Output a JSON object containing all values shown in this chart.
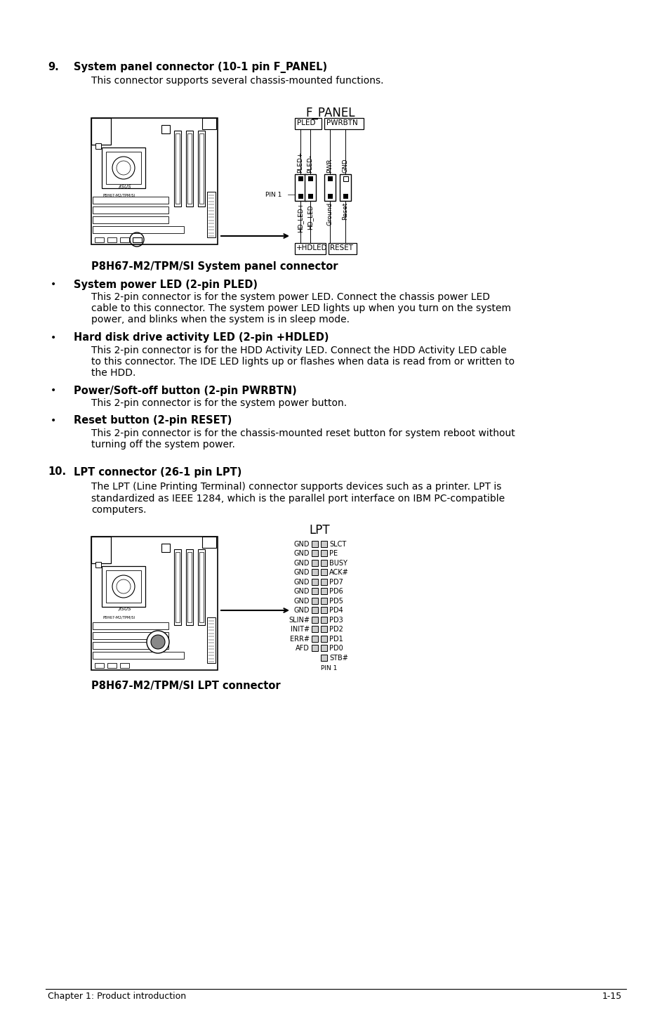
{
  "bg_color": "#ffffff",
  "section9_num": "9.",
  "section9_title": "System panel connector (10-1 pin F_PANEL)",
  "section9_desc": "This connector supports several chassis-mounted functions.",
  "fpanel_title": "F_PANEL",
  "fpanel_top_labels": [
    "PLED",
    "PWRBTN"
  ],
  "fpanel_top_pins": [
    "PLED+",
    "PLED-",
    "PWR",
    "GND"
  ],
  "fpanel_bot_pins": [
    "HD_LED+",
    "HD_LED-",
    "Ground",
    "Reset"
  ],
  "fpanel_bot_labels": [
    "+HDLED",
    "RESET"
  ],
  "fpanel_pin1": "PIN 1",
  "fpanel_caption": "P8H67-M2/TPM/SI System panel connector",
  "bullets": [
    {
      "title": "System power LED (2-pin PLED)",
      "body": "This 2-pin connector is for the system power LED. Connect the chassis power LED\ncable to this connector. The system power LED lights up when you turn on the system\npower, and blinks when the system is in sleep mode."
    },
    {
      "title": "Hard disk drive activity LED (2-pin +HDLED)",
      "body": "This 2-pin connector is for the HDD Activity LED. Connect the HDD Activity LED cable\nto this connector. The IDE LED lights up or flashes when data is read from or written to\nthe HDD."
    },
    {
      "title": "Power/Soft-off button (2-pin PWRBTN)",
      "body": "This 2-pin connector is for the system power button."
    },
    {
      "title": "Reset button (2-pin RESET)",
      "body": "This 2-pin connector is for the chassis-mounted reset button for system reboot without\nturning off the system power."
    }
  ],
  "section10_num": "10.",
  "section10_title": "LPT connector (26-1 pin LPT)",
  "section10_desc": "The LPT (Line Printing Terminal) connector supports devices such as a printer. LPT is\nstandardized as IEEE 1284, which is the parallel port interface on IBM PC-compatible\ncomputers.",
  "lpt_title": "LPT",
  "lpt_left_labels": [
    "GND",
    "GND",
    "GND",
    "GND",
    "GND",
    "GND",
    "GND",
    "GND",
    "SLIN#",
    "INIT#",
    "ERR#",
    "AFD"
  ],
  "lpt_right_labels": [
    "SLCT",
    "PE",
    "BUSY",
    "ACK#",
    "PD7",
    "PD6",
    "PD5",
    "PD4",
    "PD3",
    "PD2",
    "PD1",
    "PD0",
    "STB#"
  ],
  "lpt_pin1": "PIN 1",
  "lpt_caption": "P8H67-M2/TPM/SI LPT connector",
  "footer_left": "Chapter 1: Product introduction",
  "footer_right": "1-15",
  "ml": 68,
  "mr": 886,
  "i1": 105,
  "i2": 130
}
